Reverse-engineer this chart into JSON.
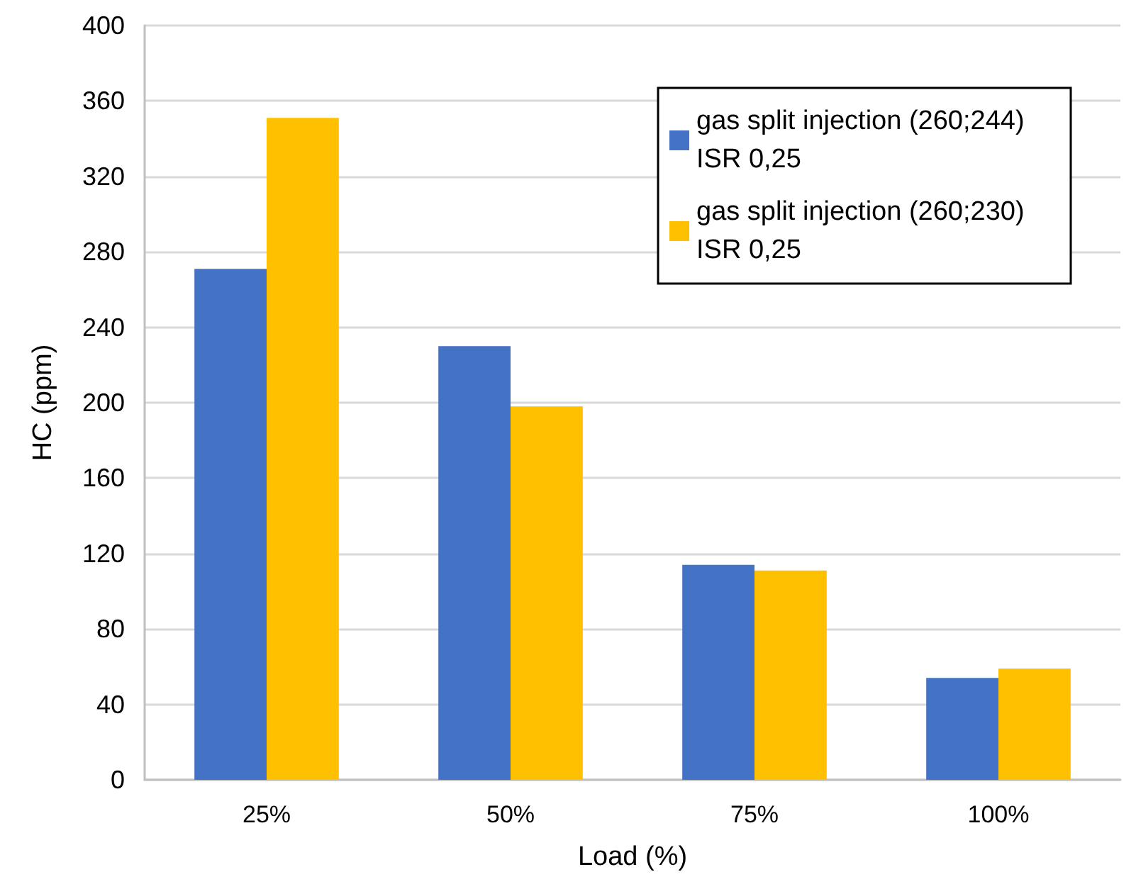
{
  "chart_data": {
    "type": "bar",
    "xlabel": "Load (%)",
    "ylabel": "HC (ppm)",
    "categories": [
      "25%",
      "50%",
      "75%",
      "100%"
    ],
    "series": [
      {
        "name": "gas split injection (260;244) ISR 0,25",
        "color": "#4472c4",
        "values": [
          271,
          230,
          114,
          54
        ]
      },
      {
        "name": "gas split injection (260;230) ISR 0,25",
        "color": "#ffc000",
        "values": [
          351,
          198,
          111,
          59
        ]
      }
    ],
    "ylim": [
      0,
      400
    ],
    "yticks": [
      0,
      40,
      80,
      120,
      160,
      200,
      240,
      280,
      320,
      360,
      400
    ],
    "grid": "y",
    "legend": "top right"
  }
}
